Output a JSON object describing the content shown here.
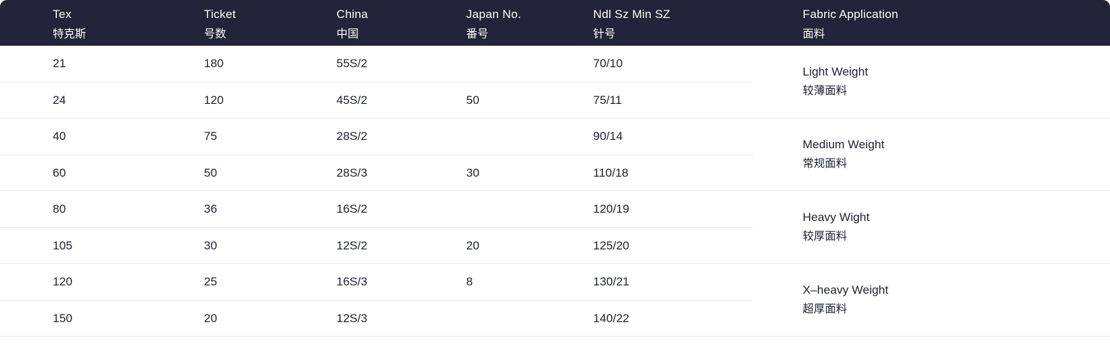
{
  "colors": {
    "header_bg": "#222539",
    "header_text": "#fafafb",
    "body_text": "#1e212f",
    "separator": "#e9eaec"
  },
  "table": {
    "columns": [
      {
        "en": "Tex",
        "zh": "特克斯"
      },
      {
        "en": "Ticket",
        "zh": "号数"
      },
      {
        "en": "China",
        "zh": "中国"
      },
      {
        "en": "Japan No.",
        "zh": "番号"
      },
      {
        "en": "Ndl Sz Min SZ",
        "zh": "针号"
      },
      {
        "en": "Fabric Application",
        "zh": "面料"
      }
    ],
    "groups": [
      {
        "fabric": {
          "en": "Light Weight",
          "zh": "较薄面料"
        },
        "rows": [
          {
            "tex": "21",
            "ticket": "180",
            "china": "55S/2",
            "japan": "",
            "ndl": "70/10"
          },
          {
            "tex": "24",
            "ticket": "120",
            "china": "45S/2",
            "japan": "50",
            "ndl": "75/11"
          }
        ]
      },
      {
        "fabric": {
          "en": "Medium Weight",
          "zh": "常规面料"
        },
        "rows": [
          {
            "tex": "40",
            "ticket": "75",
            "china": "28S/2",
            "japan": "",
            "ndl": "90/14"
          },
          {
            "tex": "60",
            "ticket": "50",
            "china": "28S/3",
            "japan": "30",
            "ndl": "110/18"
          }
        ]
      },
      {
        "fabric": {
          "en": "Heavy Wight",
          "zh": "较厚面料"
        },
        "rows": [
          {
            "tex": "80",
            "ticket": "36",
            "china": "16S/2",
            "japan": "",
            "ndl": "120/19"
          },
          {
            "tex": "105",
            "ticket": "30",
            "china": "12S/2",
            "japan": "20",
            "ndl": "125/20"
          }
        ]
      },
      {
        "fabric": {
          "en": "X–heavy Weight",
          "zh": "超厚面料"
        },
        "rows": [
          {
            "tex": "120",
            "ticket": "25",
            "china": "16S/3",
            "japan": "8",
            "ndl": "130/21"
          },
          {
            "tex": "150",
            "ticket": "20",
            "china": "12S/3",
            "japan": "",
            "ndl": "140/22"
          }
        ]
      }
    ]
  }
}
